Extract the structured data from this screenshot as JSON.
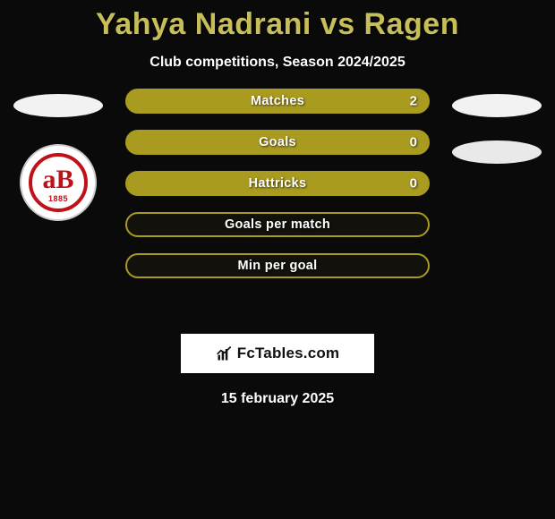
{
  "title": "Yahya Nadrani vs Ragen",
  "subtitle": "Club competitions, Season 2024/2025",
  "date": "15 february 2025",
  "brand": "FcTables.com",
  "crest_year": "1885",
  "colors": {
    "accent": "#c7be5a",
    "bar_border": "#a99a20",
    "bar_fill": "#a99a20",
    "background": "#0a0a0a",
    "crest_red": "#c01018",
    "white": "#ffffff"
  },
  "bars": [
    {
      "label": "Matches",
      "value": "2",
      "filled": true,
      "show_value": true
    },
    {
      "label": "Goals",
      "value": "0",
      "filled": true,
      "show_value": true
    },
    {
      "label": "Hattricks",
      "value": "0",
      "filled": true,
      "show_value": true
    },
    {
      "label": "Goals per match",
      "value": "",
      "filled": false,
      "show_value": false
    },
    {
      "label": "Min per goal",
      "value": "",
      "filled": false,
      "show_value": false
    }
  ]
}
